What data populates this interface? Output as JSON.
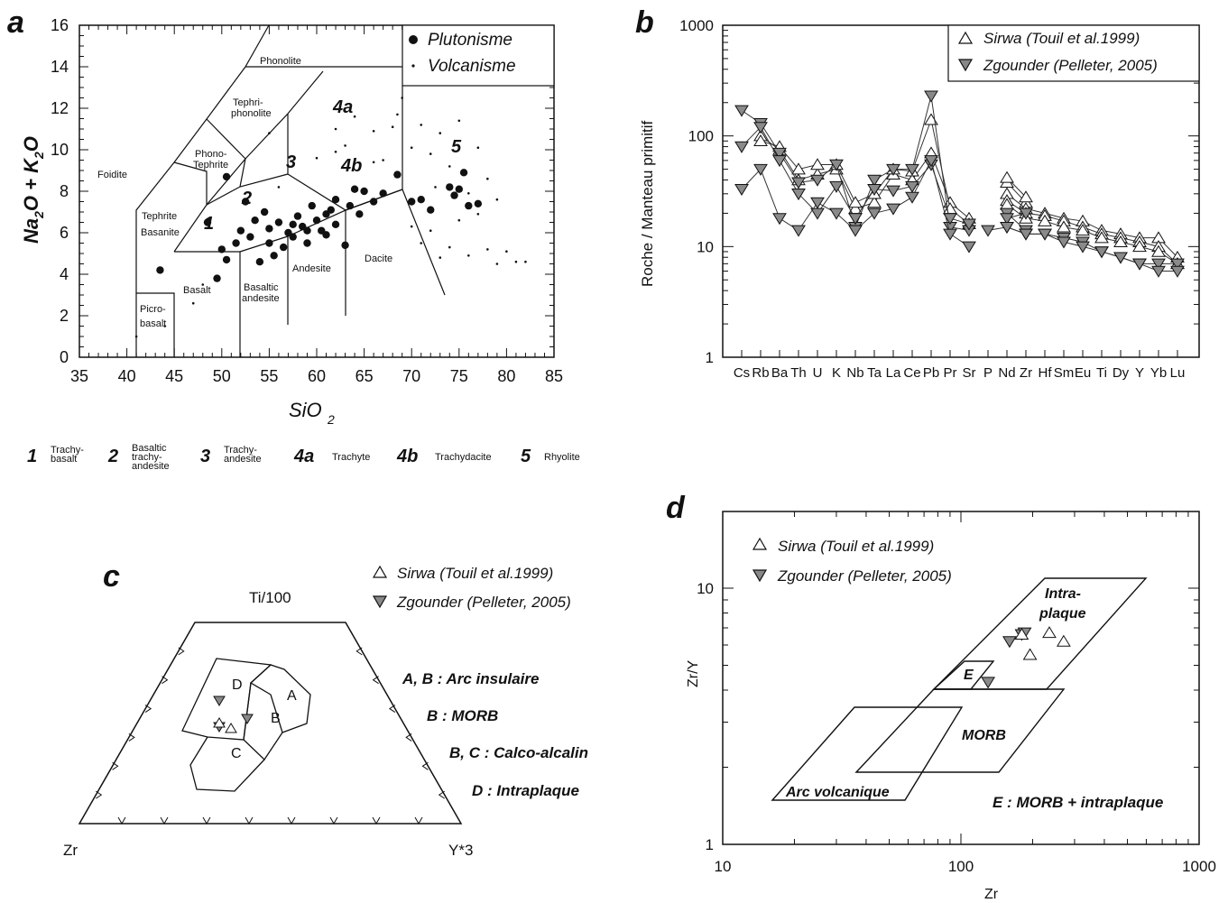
{
  "panels": {
    "a": {
      "letter": "a",
      "xlabel_main": "SiO",
      "xlabel_sub": "2",
      "ylabel": "Na2O + K2O",
      "legend": [
        "Plutonisme",
        "Volcanisme"
      ],
      "fields": {
        "phonolite": "Phonolite",
        "tephriphonolite1": "Tephri-",
        "tephriphonolite2": "phonolite",
        "phonotephrite1": "Phono-",
        "phonotephrite2": "Tephrite",
        "foidite": "Foidite",
        "tephrite1": "Tephrite",
        "tephrite2": "Basanite",
        "basalt": "Basalt",
        "picro1": "Picro-",
        "picro2": "basalt",
        "basand1": "Basaltic",
        "basand2": "andesite",
        "andesite": "Andesite",
        "dacite": "Dacite",
        "n1": "1",
        "n2": "2",
        "n3": "3",
        "n4a": "4a",
        "n4b": "4b",
        "n5": "5"
      },
      "key": [
        {
          "num": "1",
          "l1": "Trachy-",
          "l2": "basalt",
          "l3": ""
        },
        {
          "num": "2",
          "l1": "Basaltic",
          "l2": "trachy-",
          "l3": "andesite"
        },
        {
          "num": "3",
          "l1": "Trachy-",
          "l2": "andesite",
          "l3": ""
        },
        {
          "num": "4a",
          "l1": "Trachyte",
          "l2": "",
          "l3": ""
        },
        {
          "num": "4b",
          "l1": "Trachydacite",
          "l2": "",
          "l3": ""
        },
        {
          "num": "5",
          "l1": "Rhyolite",
          "l2": "",
          "l3": ""
        }
      ]
    },
    "b": {
      "letter": "b",
      "ylabel": "Roche / Manteau primitif",
      "legend": [
        "Sirwa (Touil et al.1999)",
        "Zgounder (Pelleter, 2005)"
      ]
    },
    "c": {
      "letter": "c",
      "apex_top": "Ti/100",
      "apex_left": "Zr",
      "apex_right": "Y*3",
      "field_labels": {
        "A": "A",
        "B": "B",
        "C": "C",
        "D": "D"
      },
      "legend": [
        "Sirwa (Touil et al.1999)",
        "Zgounder (Pelleter, 2005)"
      ],
      "notes": [
        "A, B : Arc insulaire",
        "B : MORB",
        "B, C : Calco-alcalin",
        "D : Intraplaque"
      ]
    },
    "d": {
      "letter": "d",
      "xlabel": "Zr",
      "ylabel": "Zr/Y",
      "legend": [
        "Sirwa (Touil et al.1999)",
        "Zgounder (Pelleter, 2005)"
      ],
      "fields": {
        "intra1": "Intra-",
        "intra2": "plaque",
        "e": "E",
        "morb": "MORB",
        "arc": "Arc volcanique"
      },
      "note": "E : MORB + intraplaque"
    }
  },
  "chart_data": [
    {
      "panel": "a",
      "type": "scatter",
      "xlabel": "SiO2",
      "ylabel": "Na2O + K2O",
      "xlim": [
        35,
        85
      ],
      "ylim": [
        0,
        16
      ],
      "xticks": [
        "35",
        "40",
        "45",
        "50",
        "55",
        "60",
        "65",
        "70",
        "75",
        "80",
        "85"
      ],
      "yticks": [
        "0",
        "2",
        "4",
        "6",
        "8",
        "10",
        "12",
        "14",
        "16"
      ],
      "series": [
        {
          "name": "Plutonisme",
          "points": [
            [
              43.5,
              4.2
            ],
            [
              48.5,
              6.5
            ],
            [
              49.5,
              3.8
            ],
            [
              50.5,
              4.7
            ],
            [
              50.5,
              8.7
            ],
            [
              51.5,
              5.5
            ],
            [
              52.5,
              7.5
            ],
            [
              53,
              5.8
            ],
            [
              54,
              4.6
            ],
            [
              54.5,
              7
            ],
            [
              55,
              5.5
            ],
            [
              55.5,
              4.9
            ],
            [
              56,
              6.5
            ],
            [
              56.5,
              5.3
            ],
            [
              57,
              6
            ],
            [
              57.5,
              5.8
            ],
            [
              58,
              6.8
            ],
            [
              58.5,
              6.3
            ],
            [
              59,
              5.5
            ],
            [
              59.5,
              7.3
            ],
            [
              60,
              6.6
            ],
            [
              60.5,
              6.1
            ],
            [
              61,
              6.9
            ],
            [
              61.5,
              7.1
            ],
            [
              62,
              6.4
            ],
            [
              63,
              5.4
            ],
            [
              63.5,
              7.3
            ],
            [
              64,
              8.1
            ],
            [
              65,
              8
            ],
            [
              66,
              7.5
            ],
            [
              67,
              7.9
            ],
            [
              68.5,
              8.8
            ],
            [
              70,
              7.5
            ],
            [
              71,
              7.6
            ],
            [
              72,
              7.1
            ],
            [
              74,
              8.2
            ],
            [
              74.5,
              7.8
            ],
            [
              75,
              8.1
            ],
            [
              75.5,
              8.9
            ],
            [
              76,
              7.3
            ],
            [
              77,
              7.4
            ],
            [
              50,
              5.2
            ],
            [
              52,
              6.1
            ],
            [
              53.5,
              6.6
            ],
            [
              55,
              6.2
            ],
            [
              57.5,
              6.4
            ],
            [
              59,
              6.1
            ],
            [
              61,
              5.9
            ],
            [
              62,
              7.6
            ],
            [
              64.5,
              6.9
            ]
          ]
        },
        {
          "name": "Volcanisme",
          "points": [
            [
              41,
              1
            ],
            [
              44,
              1.5
            ],
            [
              47,
              2.6
            ],
            [
              48,
              3.5
            ],
            [
              55,
              10.8
            ],
            [
              56,
              8.2
            ],
            [
              60,
              9.6
            ],
            [
              62,
              9.9
            ],
            [
              62,
              11
            ],
            [
              63,
              10.2
            ],
            [
              64,
              11.6
            ],
            [
              66,
              10.9
            ],
            [
              66,
              9.4
            ],
            [
              67,
              9.5
            ],
            [
              68,
              11.1
            ],
            [
              68.5,
              11.7
            ],
            [
              69,
              12.5
            ],
            [
              70,
              10.1
            ],
            [
              70,
              6.3
            ],
            [
              71,
              11.2
            ],
            [
              71,
              5.5
            ],
            [
              72,
              9.8
            ],
            [
              72,
              6.1
            ],
            [
              72.5,
              8.2
            ],
            [
              73,
              10.8
            ],
            [
              73,
              4.8
            ],
            [
              74,
              9.2
            ],
            [
              74,
              5.3
            ],
            [
              75,
              11.4
            ],
            [
              75,
              6.6
            ],
            [
              76,
              7.9
            ],
            [
              76,
              4.9
            ],
            [
              77,
              10.1
            ],
            [
              77,
              6.9
            ],
            [
              78,
              8.6
            ],
            [
              78,
              5.2
            ],
            [
              79,
              7.6
            ],
            [
              79,
              4.5
            ],
            [
              80,
              5.1
            ],
            [
              81,
              4.6
            ],
            [
              82,
              4.6
            ]
          ]
        }
      ]
    },
    {
      "panel": "b",
      "type": "line",
      "scale": "log",
      "ylabel": "Roche / Manteau primitif",
      "ylim": [
        1,
        1000
      ],
      "categories": [
        "Cs",
        "Rb",
        "Ba",
        "Th",
        "U",
        "K",
        "Nb",
        "Ta",
        "La",
        "Ce",
        "Pb",
        "Pr",
        "Sr",
        "P",
        "Nd",
        "Zr",
        "Hf",
        "Sm",
        "Eu",
        "Ti",
        "Dy",
        "Y",
        "Yb",
        "Lu"
      ],
      "series": [
        {
          "name": "Sirwa (Touil et al.1999)",
          "values": [
            null,
            100,
            75,
            40,
            45,
            50,
            22,
            25,
            45,
            40,
            70,
            25,
            18,
            null,
            38,
            25,
            null,
            null,
            null,
            null,
            null,
            null,
            null,
            null
          ]
        },
        {
          "name": "Sirwa (Touil et al.1999)",
          "values": [
            null,
            90,
            80,
            50,
            55,
            55,
            25,
            30,
            50,
            48,
            140,
            22,
            16,
            null,
            42,
            28,
            null,
            null,
            null,
            null,
            null,
            null,
            null,
            null
          ]
        },
        {
          "name": "Sirwa (Touil et al.1999)",
          "values": [
            null,
            null,
            null,
            null,
            null,
            null,
            null,
            null,
            null,
            null,
            null,
            null,
            null,
            null,
            30,
            22,
            20,
            18,
            17,
            14,
            13,
            12,
            12,
            8
          ]
        },
        {
          "name": "Sirwa (Touil et al.1999)",
          "values": [
            null,
            null,
            null,
            null,
            null,
            null,
            null,
            null,
            null,
            null,
            null,
            null,
            null,
            null,
            26,
            20,
            19,
            17,
            15,
            13,
            12,
            11,
            10,
            7
          ]
        },
        {
          "name": "Sirwa (Touil et al.1999)",
          "values": [
            null,
            null,
            null,
            null,
            null,
            null,
            null,
            null,
            null,
            null,
            null,
            null,
            null,
            null,
            24,
            18,
            17,
            15,
            14,
            12,
            11,
            10,
            9,
            7
          ]
        },
        {
          "name": "Zgounder (Pelleter, 2005)",
          "values": [
            170,
            130,
            70,
            38,
            40,
            55,
            15,
            40,
            50,
            50,
            230,
            15,
            14,
            null,
            20,
            14,
            null,
            null,
            null,
            null,
            null,
            null,
            null,
            null
          ]
        },
        {
          "name": "Zgounder (Pelleter, 2005)",
          "values": [
            80,
            120,
            60,
            30,
            20,
            35,
            18,
            33,
            32,
            35,
            55,
            18,
            16,
            null,
            18,
            20,
            null,
            null,
            null,
            null,
            null,
            null,
            null,
            null
          ]
        },
        {
          "name": "Zgounder (Pelleter, 2005)",
          "values": [
            33,
            50,
            18,
            14,
            25,
            20,
            14,
            20,
            22,
            28,
            60,
            13,
            10,
            null,
            15,
            13,
            13,
            12,
            11,
            9,
            8,
            7,
            7,
            7
          ]
        },
        {
          "name": "Zgounder (Pelleter, 2005)",
          "values": [
            null,
            null,
            null,
            null,
            null,
            null,
            null,
            null,
            null,
            null,
            null,
            null,
            null,
            14,
            15,
            13,
            13,
            11,
            10,
            9,
            8,
            7,
            6,
            6
          ]
        }
      ]
    },
    {
      "panel": "c",
      "type": "scatter",
      "axes": [
        "Ti/100",
        "Zr",
        "Y*3"
      ],
      "series": [
        {
          "name": "Sirwa (Touil et al.1999)",
          "points": [
            {
              "Ti": 0.25,
              "Zr": 0.45,
              "Y3": 0.3
            },
            {
              "Ti": 0.24,
              "Zr": 0.42,
              "Y3": 0.34
            }
          ]
        },
        {
          "name": "Zgounder (Pelleter, 2005)",
          "points": [
            {
              "Ti": 0.33,
              "Zr": 0.4,
              "Y3": 0.27
            },
            {
              "Ti": 0.27,
              "Zr": 0.38,
              "Y3": 0.35
            },
            {
              "Ti": 0.26,
              "Zr": 0.44,
              "Y3": 0.3
            }
          ]
        }
      ]
    },
    {
      "panel": "d",
      "type": "scatter",
      "scale": "log-log",
      "xlabel": "Zr",
      "ylabel": "Zr/Y",
      "xlim": [
        10,
        1000
      ],
      "ylim": [
        1,
        20
      ],
      "xticks": [
        "10",
        "100",
        "1000"
      ],
      "yticks": [
        "1",
        "10"
      ],
      "series": [
        {
          "name": "Sirwa (Touil et al.1999)",
          "points": [
            [
              180,
              6.6
            ],
            [
              195,
              5.5
            ],
            [
              235,
              6.7
            ],
            [
              270,
              6.2
            ]
          ]
        },
        {
          "name": "Zgounder (Pelleter, 2005)",
          "points": [
            [
              130,
              4.3
            ],
            [
              160,
              6.2
            ],
            [
              180,
              6.6
            ],
            [
              185,
              6.7
            ]
          ]
        }
      ]
    }
  ]
}
